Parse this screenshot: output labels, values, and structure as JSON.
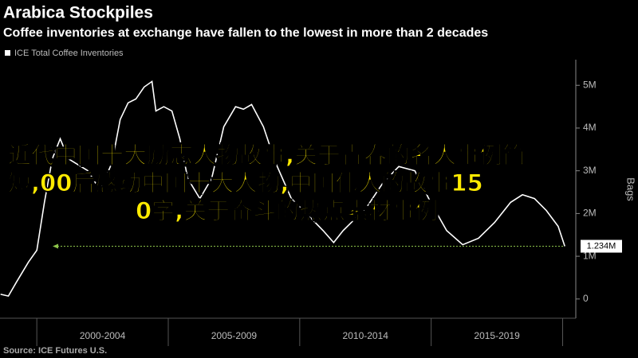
{
  "chart_data": {
    "type": "line",
    "title": "Arabica Stockpiles",
    "subtitle": "Coffee inventories at exchange have fallen to the lowest in more than 2 decades",
    "source": "Source: ICE Futures U.S.",
    "ylabel": "Bags",
    "x": [
      1998.62,
      1998.92,
      1999.23,
      1999.68,
      2000.0,
      2000.29,
      2000.59,
      2000.89,
      2001.2,
      2001.95,
      2002.41,
      2002.86,
      2003.17,
      2003.47,
      2003.77,
      2004.08,
      2004.38,
      2004.53,
      2004.83,
      2005.14,
      2005.44,
      2005.74,
      2006.2,
      2006.65,
      2007.11,
      2007.56,
      2007.86,
      2008.17,
      2008.62,
      2009.08,
      2009.68,
      2010.29,
      2010.89,
      2011.29,
      2011.65,
      2012.11,
      2012.56,
      2013.17,
      2013.77,
      2014.38,
      2014.98,
      2015.59,
      2016.2,
      2016.8,
      2017.41,
      2018.02,
      2018.47,
      2018.93,
      2019.38,
      2019.83,
      2020.08
    ],
    "series": [
      {
        "name": "ICE Total Coffee Inventories",
        "color": "#ffffff",
        "values": [
          0.11,
          0.07,
          0.4,
          0.86,
          1.14,
          2.26,
          3.28,
          3.75,
          3.28,
          3.0,
          2.54,
          3.19,
          4.2,
          4.59,
          4.68,
          4.96,
          5.09,
          4.4,
          4.5,
          4.4,
          3.75,
          2.82,
          2.35,
          2.82,
          4.03,
          4.5,
          4.44,
          4.55,
          4.03,
          3.19,
          2.35,
          1.98,
          1.6,
          1.32,
          1.6,
          1.88,
          2.16,
          2.72,
          3.1,
          3.0,
          2.26,
          1.6,
          1.27,
          1.42,
          1.79,
          2.26,
          2.44,
          2.35,
          2.07,
          1.7,
          1.234
        ]
      }
    ],
    "annotation": {
      "value": 1.234,
      "label": "1.234M",
      "color": "#8bc34a"
    },
    "xlim": [
      1998.6,
      2020.5
    ],
    "xticks": [
      {
        "value": 2002.5,
        "label": "2000-2004"
      },
      {
        "value": 2007.5,
        "label": "2005-2009"
      },
      {
        "value": 2012.5,
        "label": "2010-2014"
      },
      {
        "value": 2017.5,
        "label": "2015-2019"
      }
    ],
    "xdividers": [
      2000,
      2005,
      2010,
      2015,
      2020
    ],
    "ylim": [
      -0.45,
      5.6
    ],
    "yticks": [
      0,
      {
        "value": 1,
        "label": "1M"
      },
      {
        "value": 2,
        "label": "2M"
      },
      {
        "value": 3,
        "label": "3M"
      },
      {
        "value": 4,
        "label": "4M"
      },
      {
        "value": 5,
        "label": "5M"
      }
    ]
  },
  "overlay": {
    "lines": [
      "近代中国十大励志人物故事,关于青春的名人事例简",
      "短,00后感动中国十大人物,中国伟人的故事15",
      "0字,关于奋斗的热点素材事例"
    ]
  }
}
